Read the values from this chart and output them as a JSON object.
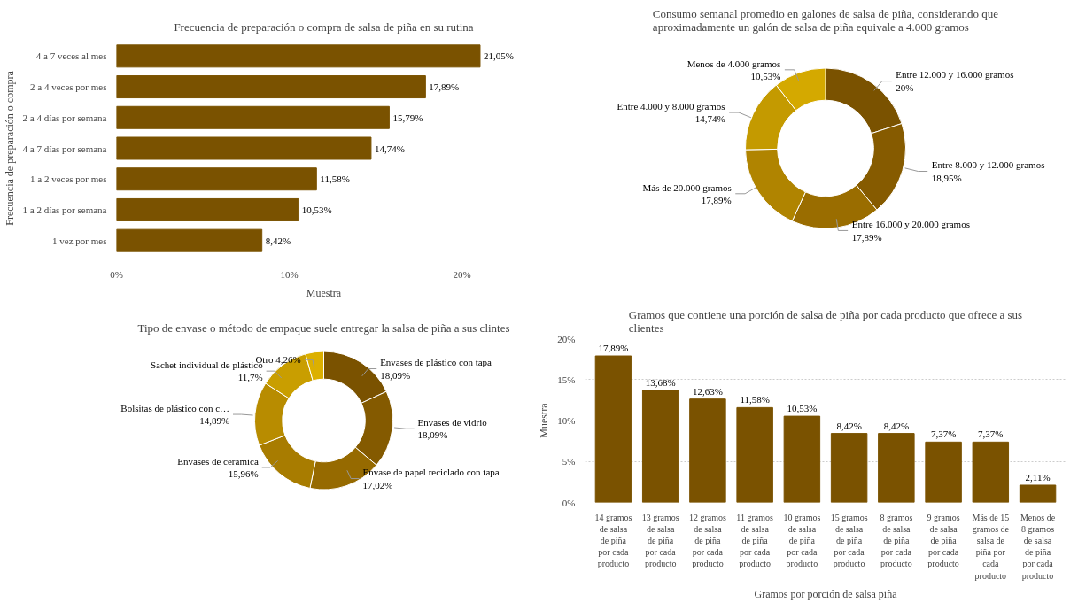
{
  "chart_data": [
    {
      "type": "bar",
      "orientation": "horizontal",
      "title": "Frecuencia de preparación o compra de salsa de piña en su rutina",
      "xlabel": "Muestra",
      "ylabel": "Frecuencia de preparación o compra",
      "categories": [
        "4 a 7 veces al mes",
        "2 a 4 veces por mes",
        "2 a 4 días por semana",
        "4 a 7 días por semana",
        "1 a 2 veces por mes",
        "1 a 2 días por semana",
        "1 vez por mes"
      ],
      "values": [
        21.05,
        17.89,
        15.79,
        14.74,
        11.58,
        10.53,
        8.42
      ],
      "color": "#7a5200",
      "value_labels": [
        "21,05%",
        "17,89%",
        "15,79%",
        "14,74%",
        "11,58%",
        "10,53%",
        "8,42%"
      ],
      "xlim": [
        0,
        24
      ],
      "xticks": [
        {
          "value": 0,
          "label": "0%"
        },
        {
          "value": 10,
          "label": "10%"
        },
        {
          "value": 20,
          "label": "20%"
        }
      ],
      "grid": false
    },
    {
      "type": "donut",
      "title": "Consumo semanal promedio en galones de salsa de piña, considerando que aproximadamente un galón de salsa de piña equivale a 4.000 gramos",
      "categories": [
        "Entre 12.000 y 16.000 gramos",
        "Entre 8.000 y 12.000 gramos",
        "Entre 16.000 y 20.000 gramos",
        "Más de 20.000 gramos",
        "Entre 4.000 y 8.000 gramos",
        "Menos de 4.000 gramos"
      ],
      "values": [
        20,
        18.95,
        17.89,
        17.89,
        14.74,
        10.53
      ],
      "value_labels": [
        "20%",
        "18,95%",
        "17,89%",
        "17,89%",
        "14,74%",
        "10,53%"
      ],
      "colors": [
        "#7a5200",
        "#865b00",
        "#9a6d00",
        "#b08400",
        "#c49a00",
        "#d4a900"
      ]
    },
    {
      "type": "donut",
      "title": "Tipo de envase o método de empaque suele entregar la salsa de piña a sus clintes",
      "categories": [
        "Envases de plástico con tapa",
        "Envases de vidrio",
        "Envase de papel reciclado con tapa",
        "Envases de ceramica",
        "Bolsitas de plástico con c…",
        "Sachet individual de plástico",
        "Otro"
      ],
      "values": [
        18.09,
        18.09,
        17.02,
        15.96,
        14.89,
        11.7,
        4.26
      ],
      "value_labels": [
        "18,09%",
        "18,09%",
        "17,02%",
        "15,96%",
        "14,89%",
        "11,7%",
        "4,26%"
      ],
      "colors": [
        "#7a5200",
        "#845a00",
        "#966a00",
        "#a87c00",
        "#b88c00",
        "#c99e00",
        "#dcb000"
      ]
    },
    {
      "type": "bar",
      "title": "Gramos que contiene una porción de salsa de piña por cada producto que ofrece a sus clientes",
      "xlabel": "Gramos por porción de salsa piña",
      "ylabel": "Muestra",
      "categories": [
        "14 gramos de salsa de piña por cada producto",
        "13 gramos de salsa de piña por cada producto",
        "12 gramos de salsa de piña por cada producto",
        "11 gramos de salsa de piña por cada producto",
        "10 gramos de salsa de piña por cada producto",
        "15 gramos de salsa de piña por cada producto",
        "8 gramos de salsa de piña por cada producto",
        "9 gramos de salsa de piña por cada producto",
        "Más de 15 gramos de salsa de piña por cada producto",
        "Menos de 8 gramos de salsa de piña por cada producto"
      ],
      "values": [
        17.89,
        13.68,
        12.63,
        11.58,
        10.53,
        8.42,
        8.42,
        7.37,
        7.37,
        2.11
      ],
      "color": "#7a5200",
      "value_labels": [
        "17,89%",
        "13,68%",
        "12,63%",
        "11,58%",
        "10,53%",
        "8,42%",
        "8,42%",
        "7,37%",
        "7,37%",
        "2,11%"
      ],
      "ylim": [
        0,
        20
      ],
      "yticks": [
        {
          "value": 0,
          "label": "0%"
        },
        {
          "value": 5,
          "label": "5%"
        },
        {
          "value": 10,
          "label": "10%"
        },
        {
          "value": 15,
          "label": "15%"
        },
        {
          "value": 20,
          "label": "20%"
        }
      ],
      "grid": "y"
    }
  ]
}
